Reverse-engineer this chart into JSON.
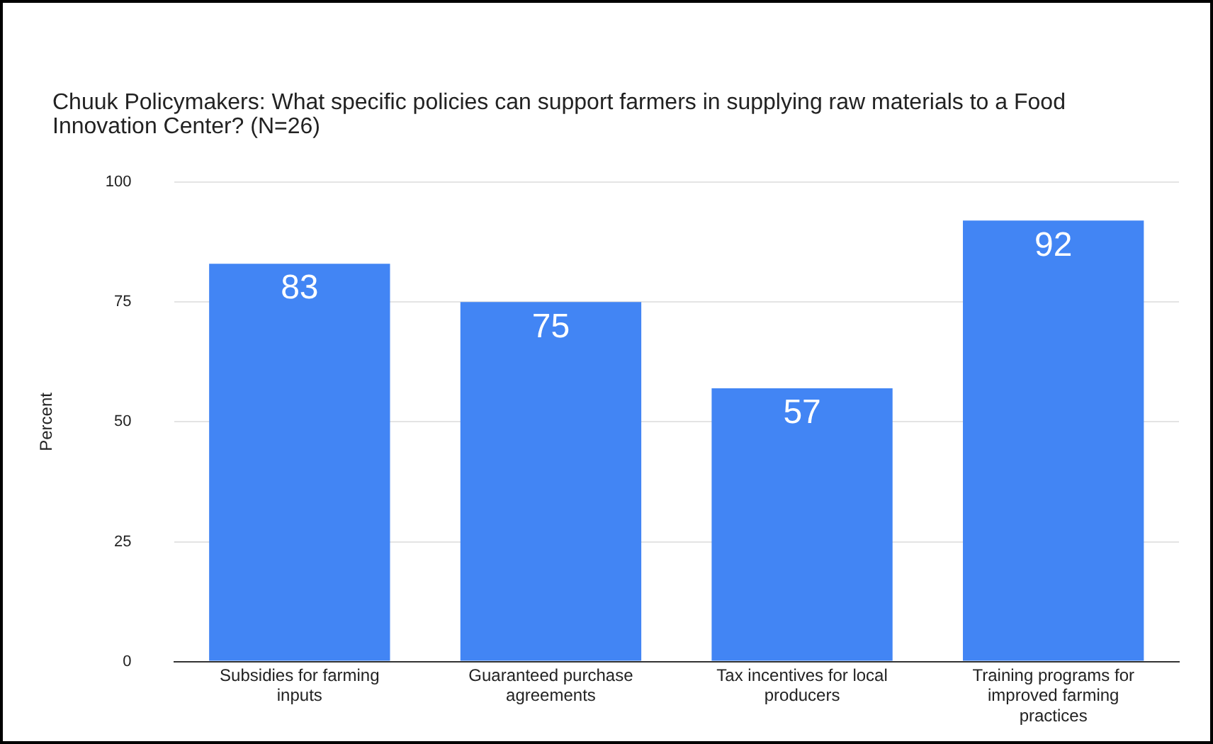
{
  "chart_data": {
    "type": "bar",
    "title": "Chuuk Policymakers: What specific policies can support farmers in supplying raw materials to a Food Innovation Center? (N=26)",
    "ylabel": "Percent",
    "categories": [
      "Subsidies for farming inputs",
      "Guaranteed purchase agreements",
      "Tax incentives for local producers",
      "Training programs for improved farming practices"
    ],
    "values": [
      83,
      75,
      57,
      92
    ],
    "color": "#4285f4",
    "ylim": [
      0,
      100
    ],
    "yticks": [
      0,
      25,
      50,
      75,
      100
    ],
    "grid": "y",
    "data_labels": true,
    "legend": false
  }
}
